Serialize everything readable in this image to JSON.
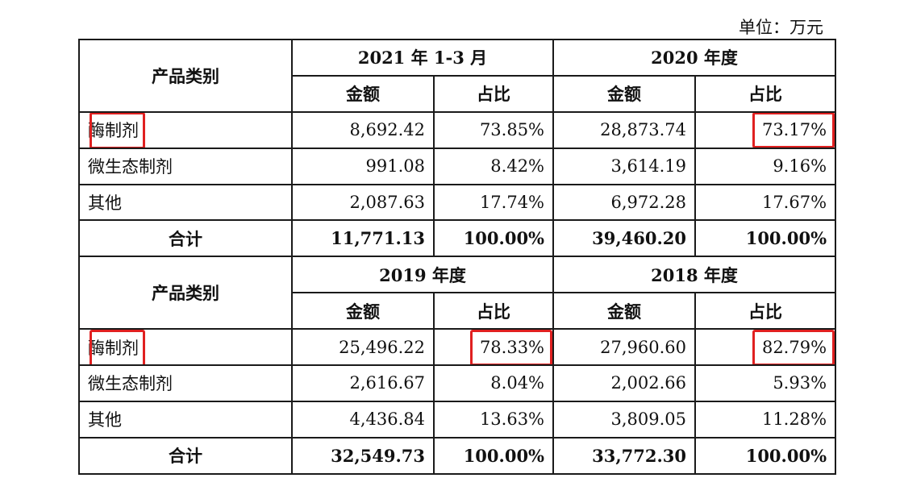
{
  "unit_label": "单位：万元",
  "header_label": "产品类别",
  "amount_label": "金额",
  "ratio_label": "占比",
  "highlight_color": "#e02020",
  "blocks": [
    {
      "periods": [
        "2021 年 1-3 月",
        "2020 年度"
      ],
      "rows": [
        {
          "category": "酶制剂",
          "v1": "8,692.42",
          "r1": "73.85%",
          "v2": "28,873.74",
          "r2": "73.17%"
        },
        {
          "category": "微生态制剂",
          "v1": "991.08",
          "r1": "8.42%",
          "v2": "3,614.19",
          "r2": "9.16%"
        },
        {
          "category": "其他",
          "v1": "2,087.63",
          "r1": "17.74%",
          "v2": "6,972.28",
          "r2": "17.67%"
        },
        {
          "category": "合计",
          "v1": "11,771.13",
          "r1": "100.00%",
          "v2": "39,460.20",
          "r2": "100.00%"
        }
      ]
    },
    {
      "periods": [
        "2019 年度",
        "2018 年度"
      ],
      "rows": [
        {
          "category": "酶制剂",
          "v1": "25,496.22",
          "r1": "78.33%",
          "v2": "27,960.60",
          "r2": "82.79%"
        },
        {
          "category": "微生态制剂",
          "v1": "2,616.67",
          "r1": "8.04%",
          "v2": "2,002.66",
          "r2": "5.93%"
        },
        {
          "category": "其他",
          "v1": "4,436.84",
          "r1": "13.63%",
          "v2": "3,809.05",
          "r2": "11.28%"
        },
        {
          "category": "合计",
          "v1": "32,549.73",
          "r1": "100.00%",
          "v2": "33,772.30",
          "r2": "100.00%"
        }
      ]
    }
  ]
}
